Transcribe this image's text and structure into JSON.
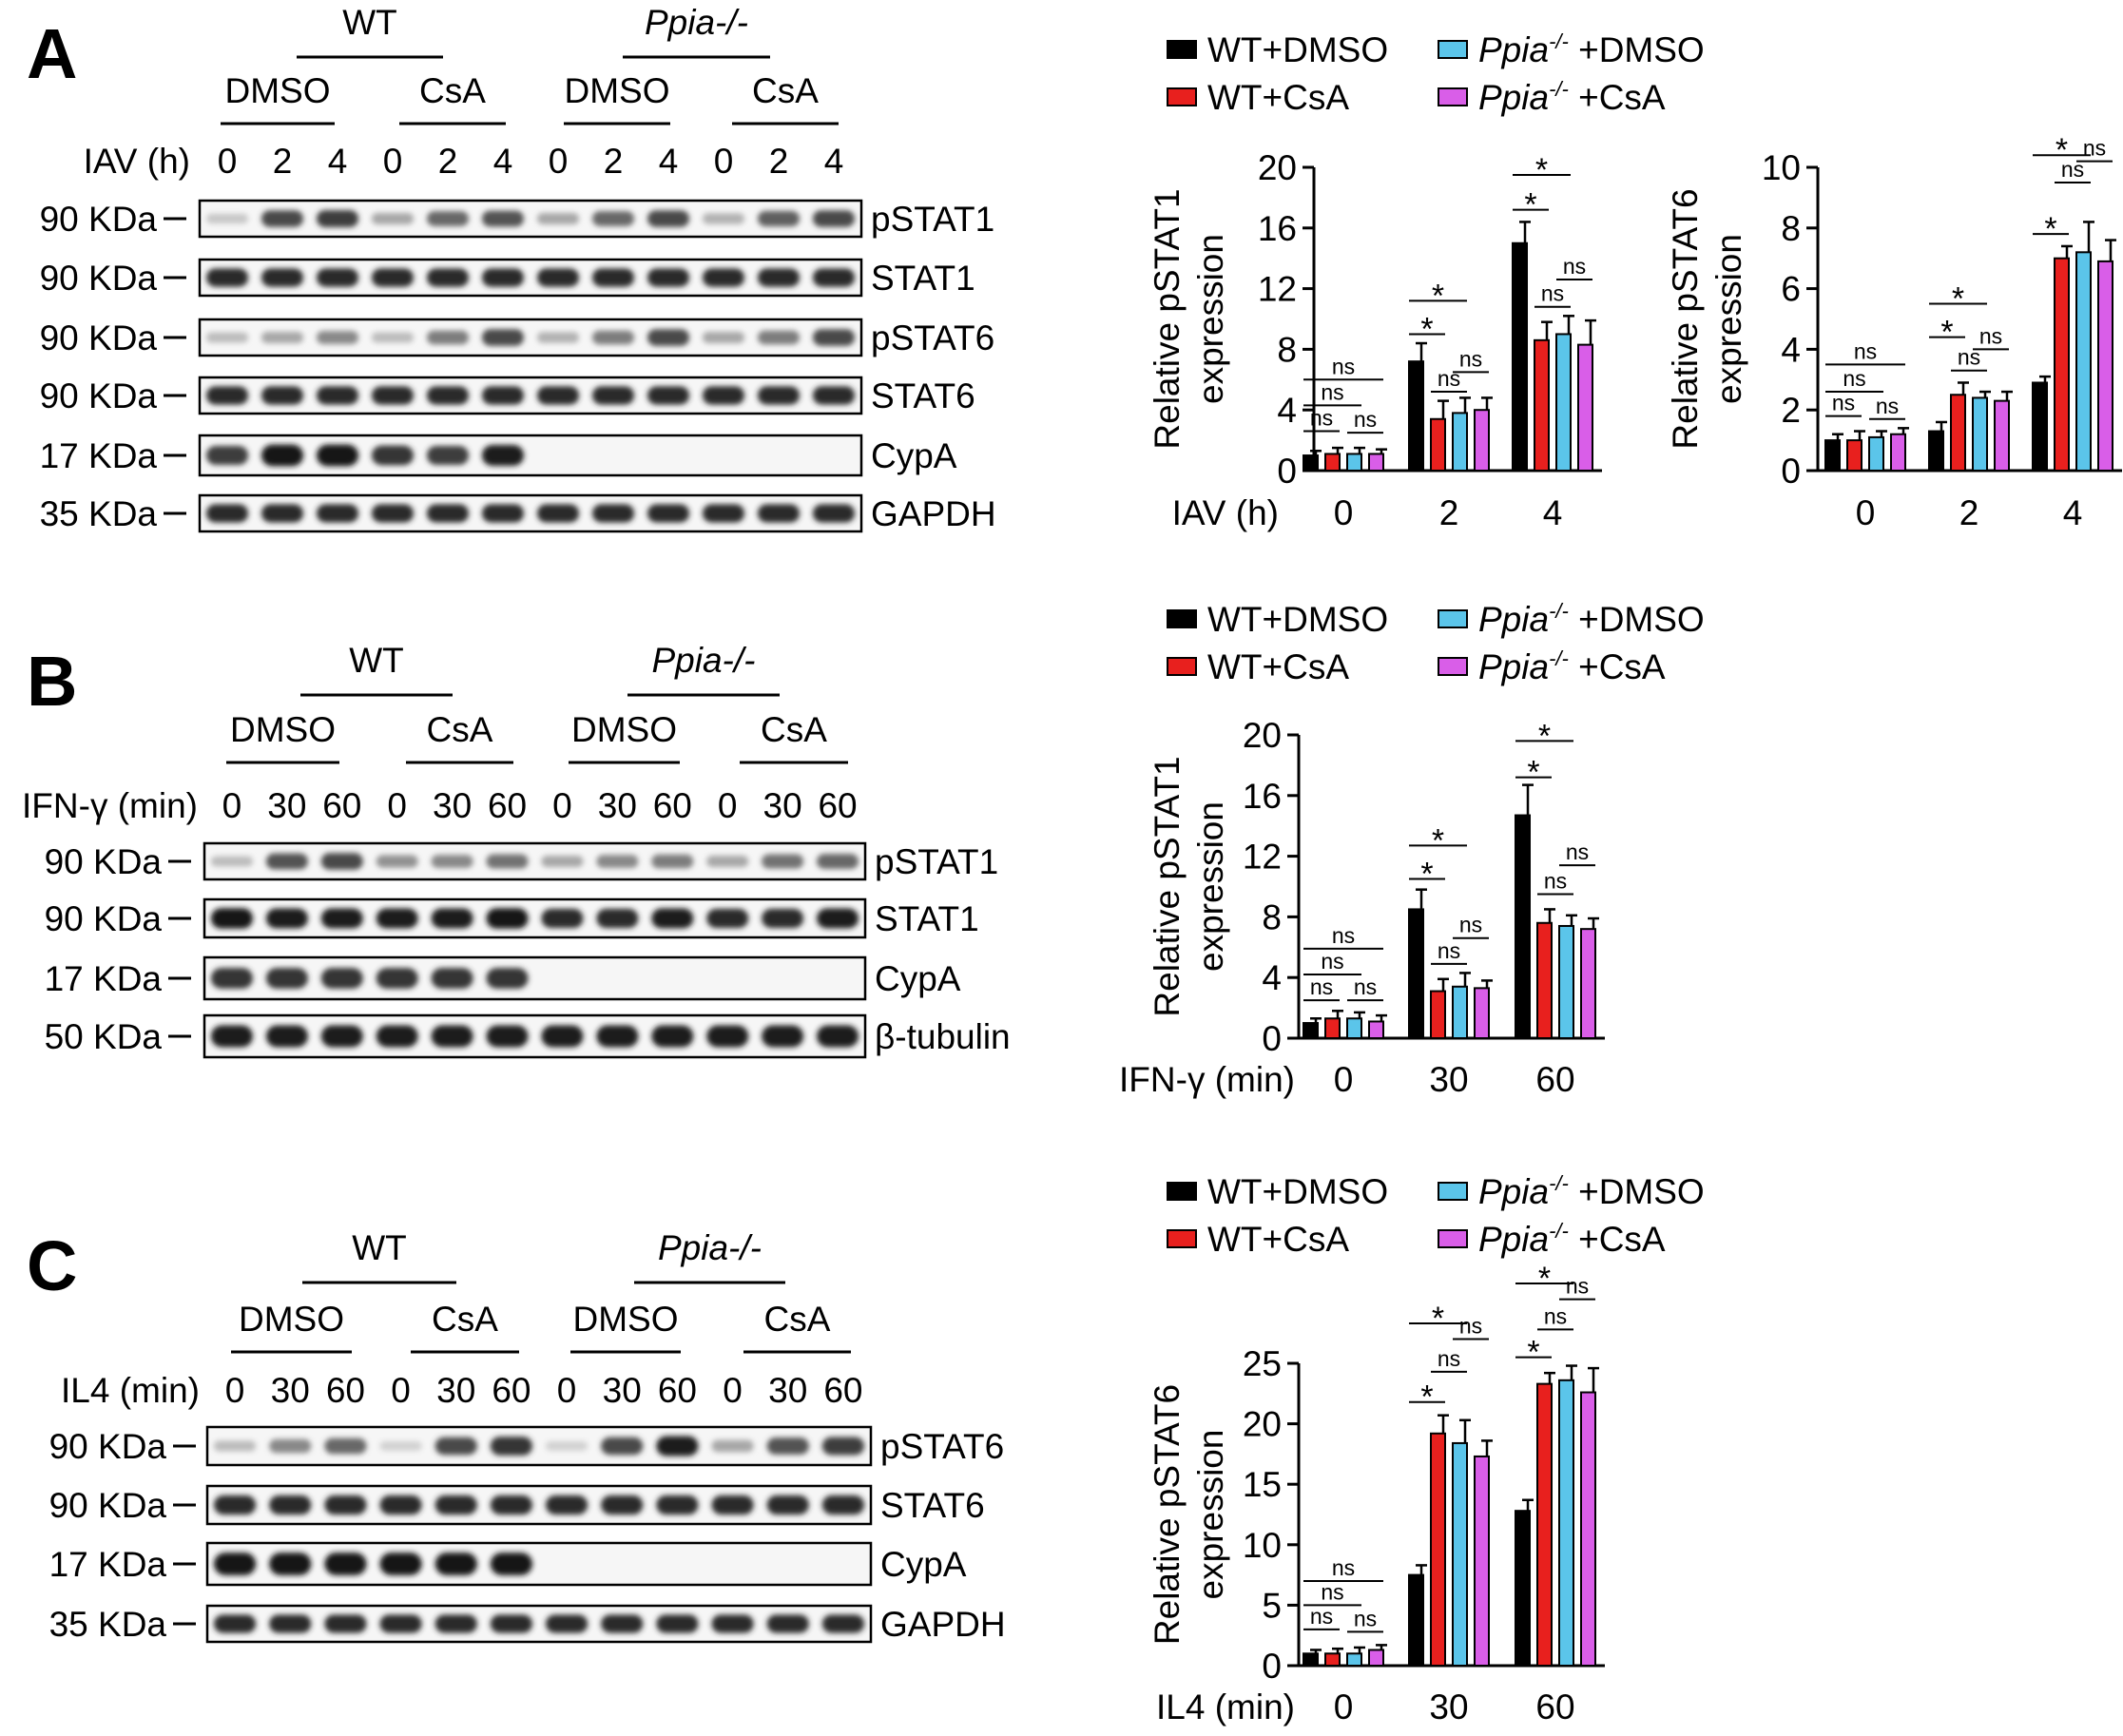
{
  "figure": {
    "panel_A": {
      "letter": "A",
      "blot": {
        "groups": [
          "WT",
          "Ppia-/-"
        ],
        "treatments": [
          "DMSO",
          "CsA",
          "DMSO",
          "CsA"
        ],
        "time_label": "IAV (h)",
        "time_points": [
          "0",
          "2",
          "4",
          "0",
          "2",
          "4",
          "0",
          "2",
          "4",
          "0",
          "2",
          "4"
        ],
        "rows": [
          {
            "mw": "90 KDa",
            "protein": "pSTAT1",
            "intensity": [
              0.15,
              0.75,
              0.8,
              0.3,
              0.6,
              0.7,
              0.3,
              0.6,
              0.75,
              0.25,
              0.65,
              0.75
            ]
          },
          {
            "mw": "90 KDa",
            "protein": "STAT1",
            "intensity": [
              0.9,
              0.9,
              0.9,
              0.9,
              0.9,
              0.9,
              0.9,
              0.9,
              0.9,
              0.9,
              0.9,
              0.9
            ]
          },
          {
            "mw": "90 KDa",
            "protein": "pSTAT6",
            "intensity": [
              0.2,
              0.3,
              0.45,
              0.2,
              0.5,
              0.75,
              0.25,
              0.5,
              0.75,
              0.3,
              0.5,
              0.75
            ]
          },
          {
            "mw": "90 KDa",
            "protein": "STAT6",
            "intensity": [
              0.9,
              0.9,
              0.9,
              0.9,
              0.9,
              0.9,
              0.9,
              0.9,
              0.9,
              0.9,
              0.9,
              0.9
            ]
          },
          {
            "mw": "17 KDa",
            "protein": "CypA",
            "intensity": [
              0.8,
              1.0,
              1.0,
              0.85,
              0.8,
              0.95,
              0,
              0,
              0,
              0,
              0,
              0
            ]
          },
          {
            "mw": "35 KDa",
            "protein": "GAPDH",
            "intensity": [
              0.9,
              0.9,
              0.9,
              0.9,
              0.9,
              0.9,
              0.9,
              0.9,
              0.9,
              0.9,
              0.9,
              0.9
            ]
          }
        ]
      }
    },
    "panel_B": {
      "letter": "B",
      "blot": {
        "groups": [
          "WT",
          "Ppia-/-"
        ],
        "treatments": [
          "DMSO",
          "CsA",
          "DMSO",
          "CsA"
        ],
        "time_label": "IFN-γ (min)",
        "time_points": [
          "0",
          "30",
          "60",
          "0",
          "30",
          "60",
          "0",
          "30",
          "60",
          "0",
          "30",
          "60"
        ],
        "rows": [
          {
            "mw": "90 KDa",
            "protein": "pSTAT1",
            "intensity": [
              0.2,
              0.7,
              0.75,
              0.4,
              0.45,
              0.55,
              0.3,
              0.45,
              0.5,
              0.3,
              0.55,
              0.6
            ]
          },
          {
            "mw": "90 KDa",
            "protein": "STAT1",
            "intensity": [
              1.0,
              0.95,
              0.95,
              0.95,
              0.95,
              1.0,
              0.9,
              0.9,
              0.95,
              0.9,
              0.9,
              0.95
            ]
          },
          {
            "mw": "17 KDa",
            "protein": "CypA",
            "intensity": [
              0.85,
              0.85,
              0.85,
              0.85,
              0.85,
              0.85,
              0,
              0,
              0,
              0,
              0,
              0
            ]
          },
          {
            "mw": "50 KDa",
            "protein": "β-tubulin",
            "intensity": [
              0.95,
              0.95,
              0.95,
              0.95,
              0.95,
              0.95,
              0.95,
              0.95,
              0.95,
              0.95,
              0.95,
              0.95
            ]
          }
        ]
      }
    },
    "panel_C": {
      "letter": "C",
      "blot": {
        "groups": [
          "WT",
          "Ppia-/-"
        ],
        "treatments": [
          "DMSO",
          "CsA",
          "DMSO",
          "CsA"
        ],
        "time_label": "IL4 (min)",
        "time_points": [
          "0",
          "30",
          "60",
          "0",
          "30",
          "60",
          "0",
          "30",
          "60",
          "0",
          "30",
          "60"
        ],
        "rows": [
          {
            "mw": "90 KDa",
            "protein": "pSTAT6",
            "intensity": [
              0.2,
              0.45,
              0.6,
              0.1,
              0.75,
              0.85,
              0.1,
              0.75,
              0.95,
              0.3,
              0.7,
              0.8
            ]
          },
          {
            "mw": "90 KDa",
            "protein": "STAT6",
            "intensity": [
              0.9,
              0.9,
              0.9,
              0.9,
              0.9,
              0.9,
              0.9,
              0.9,
              0.9,
              0.9,
              0.9,
              0.9
            ]
          },
          {
            "mw": "17 KDa",
            "protein": "CypA",
            "intensity": [
              1.0,
              1.0,
              1.0,
              1.0,
              1.0,
              1.0,
              0,
              0,
              0,
              0,
              0,
              0
            ]
          },
          {
            "mw": "35 KDa",
            "protein": "GAPDH",
            "intensity": [
              0.9,
              0.9,
              0.9,
              0.9,
              0.9,
              0.9,
              0.9,
              0.9,
              0.9,
              0.9,
              0.9,
              0.9
            ]
          }
        ]
      }
    }
  },
  "legend": {
    "entries": [
      {
        "main": "WT+DMSO",
        "color": "#000000"
      },
      {
        "main": "WT+CsA",
        "color": "#e8201e"
      },
      {
        "main": "Ppia",
        "sup": "-/-",
        "rest": " +DMSO",
        "color": "#5bc5ea"
      },
      {
        "main": "Ppia",
        "sup": "-/-",
        "rest": " +CsA",
        "color": "#d95ee8"
      }
    ]
  },
  "chart_data": [
    {
      "type": "bar",
      "ylabel": [
        "Relative pSTAT1",
        "expression"
      ],
      "xlabel": "IAV (h)",
      "categories": [
        "0",
        "2",
        "4"
      ],
      "ylim": [
        0,
        20
      ],
      "yticks": [
        0,
        4,
        8,
        12,
        16,
        20
      ],
      "series": [
        {
          "name": "WT+DMSO",
          "values": [
            1.0,
            7.2,
            15.0
          ],
          "errors": [
            0.3,
            1.2,
            1.4
          ]
        },
        {
          "name": "WT+CsA",
          "values": [
            1.1,
            3.4,
            8.6
          ],
          "errors": [
            0.4,
            1.2,
            1.2
          ]
        },
        {
          "name": "Ppia-/- +DMSO",
          "values": [
            1.1,
            3.8,
            9.0
          ],
          "errors": [
            0.4,
            1.0,
            1.2
          ]
        },
        {
          "name": "Ppia-/- +CsA",
          "values": [
            1.1,
            4.0,
            8.3
          ],
          "errors": [
            0.3,
            0.8,
            1.6
          ]
        }
      ],
      "annotations": [
        {
          "cat": 0,
          "from": 0,
          "to": 1,
          "label": "ns",
          "y": 2.6
        },
        {
          "cat": 0,
          "from": 0,
          "to": 2,
          "label": "ns",
          "y": 4.3
        },
        {
          "cat": 0,
          "from": 0,
          "to": 3,
          "label": "ns",
          "y": 6.0
        },
        {
          "cat": 0,
          "from": 2,
          "to": 3,
          "label": "ns",
          "y": 2.5
        },
        {
          "cat": 1,
          "from": 0,
          "to": 1,
          "label": "*",
          "y": 9.0
        },
        {
          "cat": 1,
          "from": 0,
          "to": 2,
          "label": "*",
          "y": 11.2
        },
        {
          "cat": 1,
          "from": 1,
          "to": 2,
          "label": "ns",
          "y": 5.2
        },
        {
          "cat": 1,
          "from": 2,
          "to": 3,
          "label": "ns",
          "y": 6.5
        },
        {
          "cat": 2,
          "from": 0,
          "to": 1,
          "label": "*",
          "y": 17.2
        },
        {
          "cat": 2,
          "from": 0,
          "to": 2,
          "label": "*",
          "y": 19.5
        },
        {
          "cat": 2,
          "from": 1,
          "to": 2,
          "label": "ns",
          "y": 10.8
        },
        {
          "cat": 2,
          "from": 2,
          "to": 3,
          "label": "ns",
          "y": 12.6
        }
      ]
    },
    {
      "type": "bar",
      "ylabel": [
        "Relative pSTAT6",
        "expression"
      ],
      "xlabel": "",
      "categories": [
        "0",
        "2",
        "4"
      ],
      "ylim": [
        0,
        10
      ],
      "yticks": [
        0,
        2,
        4,
        6,
        8,
        10
      ],
      "series": [
        {
          "name": "WT+DMSO",
          "values": [
            1.0,
            1.3,
            2.9
          ],
          "errors": [
            0.2,
            0.3,
            0.2
          ]
        },
        {
          "name": "WT+CsA",
          "values": [
            1.0,
            2.5,
            7.0
          ],
          "errors": [
            0.3,
            0.4,
            0.4
          ]
        },
        {
          "name": "Ppia-/- +DMSO",
          "values": [
            1.1,
            2.4,
            7.2
          ],
          "errors": [
            0.2,
            0.2,
            1.0
          ]
        },
        {
          "name": "Ppia-/- +CsA",
          "values": [
            1.2,
            2.3,
            6.9
          ],
          "errors": [
            0.2,
            0.3,
            0.7
          ]
        }
      ],
      "annotations": [
        {
          "cat": 0,
          "from": 0,
          "to": 1,
          "label": "ns",
          "y": 1.8
        },
        {
          "cat": 0,
          "from": 0,
          "to": 2,
          "label": "ns",
          "y": 2.6
        },
        {
          "cat": 0,
          "from": 0,
          "to": 3,
          "label": "ns",
          "y": 3.5
        },
        {
          "cat": 0,
          "from": 2,
          "to": 3,
          "label": "ns",
          "y": 1.7
        },
        {
          "cat": 1,
          "from": 0,
          "to": 1,
          "label": "*",
          "y": 4.4
        },
        {
          "cat": 1,
          "from": 0,
          "to": 2,
          "label": "*",
          "y": 5.5
        },
        {
          "cat": 1,
          "from": 1,
          "to": 2,
          "label": "ns",
          "y": 3.3
        },
        {
          "cat": 1,
          "from": 2,
          "to": 3,
          "label": "ns",
          "y": 4.0
        },
        {
          "cat": 2,
          "from": 0,
          "to": 1,
          "label": "*",
          "y": 7.8
        },
        {
          "cat": 2,
          "from": 0,
          "to": 2,
          "label": "*",
          "y": 10.4
        },
        {
          "cat": 2,
          "from": 1,
          "to": 2,
          "label": "ns",
          "y": 9.5
        },
        {
          "cat": 2,
          "from": 2,
          "to": 3,
          "label": "ns",
          "y": 10.2
        }
      ]
    },
    {
      "type": "bar",
      "ylabel": [
        "Relative pSTAT1",
        "expression"
      ],
      "xlabel": "IFN-γ (min)",
      "categories": [
        "0",
        "30",
        "60"
      ],
      "ylim": [
        0,
        20
      ],
      "yticks": [
        0,
        4,
        8,
        12,
        16,
        20
      ],
      "series": [
        {
          "name": "WT+DMSO",
          "values": [
            1.0,
            8.5,
            14.7
          ],
          "errors": [
            0.3,
            1.3,
            2.0
          ]
        },
        {
          "name": "WT+CsA",
          "values": [
            1.3,
            3.1,
            7.6
          ],
          "errors": [
            0.5,
            0.8,
            0.9
          ]
        },
        {
          "name": "Ppia-/- +DMSO",
          "values": [
            1.3,
            3.4,
            7.4
          ],
          "errors": [
            0.4,
            0.9,
            0.7
          ]
        },
        {
          "name": "Ppia-/- +CsA",
          "values": [
            1.1,
            3.3,
            7.2
          ],
          "errors": [
            0.4,
            0.5,
            0.7
          ]
        }
      ],
      "annotations": [
        {
          "cat": 0,
          "from": 0,
          "to": 1,
          "label": "ns",
          "y": 2.5
        },
        {
          "cat": 0,
          "from": 0,
          "to": 2,
          "label": "ns",
          "y": 4.2
        },
        {
          "cat": 0,
          "from": 0,
          "to": 3,
          "label": "ns",
          "y": 5.9
        },
        {
          "cat": 0,
          "from": 2,
          "to": 3,
          "label": "ns",
          "y": 2.5
        },
        {
          "cat": 1,
          "from": 0,
          "to": 1,
          "label": "*",
          "y": 10.5
        },
        {
          "cat": 1,
          "from": 0,
          "to": 2,
          "label": "*",
          "y": 12.7
        },
        {
          "cat": 1,
          "from": 1,
          "to": 2,
          "label": "ns",
          "y": 4.9
        },
        {
          "cat": 1,
          "from": 2,
          "to": 3,
          "label": "ns",
          "y": 6.6
        },
        {
          "cat": 2,
          "from": 0,
          "to": 1,
          "label": "*",
          "y": 17.2
        },
        {
          "cat": 2,
          "from": 0,
          "to": 2,
          "label": "*",
          "y": 19.6
        },
        {
          "cat": 2,
          "from": 1,
          "to": 2,
          "label": "ns",
          "y": 9.5
        },
        {
          "cat": 2,
          "from": 2,
          "to": 3,
          "label": "ns",
          "y": 11.4
        }
      ]
    },
    {
      "type": "bar",
      "ylabel": [
        "Relative pSTAT6",
        "expression"
      ],
      "xlabel": "IL4 (min)",
      "categories": [
        "0",
        "30",
        "60"
      ],
      "ylim": [
        0,
        25
      ],
      "yticks": [
        0,
        5,
        10,
        15,
        20,
        25
      ],
      "series": [
        {
          "name": "WT+DMSO",
          "values": [
            1.0,
            7.5,
            12.8
          ],
          "errors": [
            0.3,
            0.8,
            0.9
          ]
        },
        {
          "name": "WT+CsA",
          "values": [
            1.0,
            19.2,
            23.3
          ],
          "errors": [
            0.4,
            1.5,
            0.9
          ]
        },
        {
          "name": "Ppia-/- +DMSO",
          "values": [
            1.0,
            18.4,
            23.6
          ],
          "errors": [
            0.5,
            1.9,
            1.2
          ]
        },
        {
          "name": "Ppia-/- +CsA",
          "values": [
            1.3,
            17.3,
            22.6
          ],
          "errors": [
            0.4,
            1.3,
            2.0
          ]
        }
      ],
      "annotations": [
        {
          "cat": 0,
          "from": 0,
          "to": 1,
          "label": "ns",
          "y": 3.0
        },
        {
          "cat": 0,
          "from": 0,
          "to": 2,
          "label": "ns",
          "y": 5.0
        },
        {
          "cat": 0,
          "from": 0,
          "to": 3,
          "label": "ns",
          "y": 7.0
        },
        {
          "cat": 0,
          "from": 2,
          "to": 3,
          "label": "ns",
          "y": 2.8
        },
        {
          "cat": 1,
          "from": 0,
          "to": 1,
          "label": "*",
          "y": 21.8
        },
        {
          "cat": 1,
          "from": 0,
          "to": 2,
          "label": "*",
          "y": 28.3
        },
        {
          "cat": 1,
          "from": 1,
          "to": 2,
          "label": "ns",
          "y": 24.3
        },
        {
          "cat": 1,
          "from": 2,
          "to": 3,
          "label": "ns",
          "y": 27.0
        },
        {
          "cat": 2,
          "from": 0,
          "to": 1,
          "label": "*",
          "y": 25.5
        },
        {
          "cat": 2,
          "from": 0,
          "to": 2,
          "label": "*",
          "y": 31.6
        },
        {
          "cat": 2,
          "from": 1,
          "to": 2,
          "label": "ns",
          "y": 27.8
        },
        {
          "cat": 2,
          "from": 2,
          "to": 3,
          "label": "ns",
          "y": 30.3
        }
      ]
    }
  ]
}
